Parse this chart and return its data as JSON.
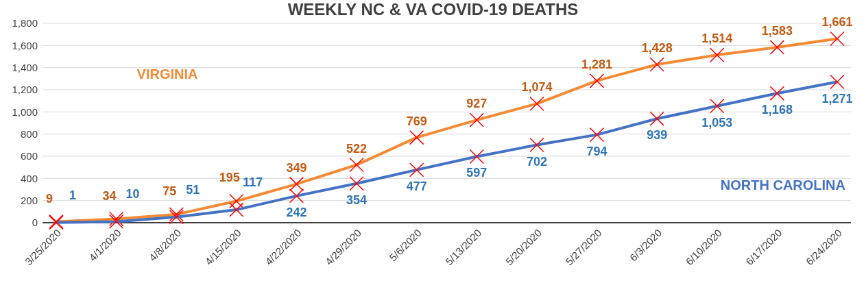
{
  "chart_data": {
    "type": "line",
    "title": "WEEKLY NC & VA COVID-19 DEATHS",
    "categories": [
      "3/25/2020",
      "4/1/2020",
      "4/8/2020",
      "4/15/2020",
      "4/22/2020",
      "4/29/2020",
      "5/6/2020",
      "5/13/2020",
      "5/20/2020",
      "5/27/2020",
      "6/3/2020",
      "6/10/2020",
      "6/17/2020",
      "6/24/2020"
    ],
    "series": [
      {
        "name": "VIRGINIA",
        "color": "#f58a34",
        "values": [
          9,
          34,
          75,
          195,
          349,
          522,
          769,
          927,
          1074,
          1281,
          1428,
          1514,
          1583,
          1661
        ],
        "value_labels": [
          "9",
          "34",
          "75",
          "195",
          "349",
          "522",
          "769",
          "927",
          "1,074",
          "1,281",
          "1,428",
          "1,514",
          "1,583",
          "1,661"
        ]
      },
      {
        "name": "NORTH CAROLINA",
        "color": "#4472c4",
        "values": [
          1,
          10,
          51,
          117,
          242,
          354,
          477,
          597,
          702,
          794,
          939,
          1053,
          1168,
          1271
        ],
        "value_labels": [
          "1",
          "10",
          "51",
          "117",
          "242",
          "354",
          "477",
          "597",
          "702",
          "794",
          "939",
          "1,053",
          "1,168",
          "1,271"
        ]
      }
    ],
    "ylim": [
      0,
      1800
    ],
    "yticks": [
      0,
      200,
      400,
      600,
      800,
      {
        "value": 1000,
        "label": "1,000"
      },
      {
        "value": 1200,
        "label": "1,200"
      },
      {
        "value": 1400,
        "label": "1,400"
      },
      {
        "value": 1600,
        "label": "1,600"
      },
      {
        "value": 1800,
        "label": "1,800"
      }
    ],
    "grid": "y",
    "marker": "cross",
    "line_style": "solid"
  }
}
